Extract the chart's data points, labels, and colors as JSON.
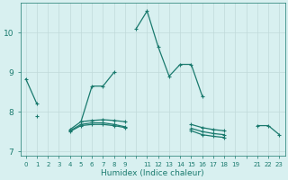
{
  "xlabel": "Humidex (Indice chaleur)",
  "background_color": "#d8f0f0",
  "line_color": "#1a7a6e",
  "grid_color": "#c0dada",
  "x_positions": [
    0,
    1,
    2,
    3,
    4,
    5,
    6,
    7,
    8,
    9,
    10,
    11,
    12,
    13,
    14,
    15,
    16,
    17,
    18,
    19,
    20,
    21,
    22,
    23
  ],
  "x_tick_labels": [
    "0",
    "1",
    "2",
    "3",
    "4",
    "5",
    "6",
    "7",
    "8",
    "9",
    "",
    "11",
    "12",
    "13",
    "14",
    "15",
    "16",
    "17",
    "18",
    "19",
    "",
    "21",
    "22",
    "23"
  ],
  "ylim": [
    6.9,
    10.75
  ],
  "yticks": [
    7,
    8,
    9,
    10
  ],
  "series": [
    {
      "x": [
        0,
        1,
        2,
        3,
        4,
        5,
        6,
        7,
        8,
        9,
        10,
        11,
        12,
        13,
        14,
        15,
        16,
        17,
        18,
        19,
        20,
        21,
        22,
        23
      ],
      "y": [
        8.83,
        8.2,
        null,
        null,
        null,
        7.75,
        8.65,
        8.65,
        9.0,
        null,
        10.1,
        10.55,
        9.65,
        8.9,
        9.2,
        9.2,
        8.4,
        null,
        null,
        null,
        null,
        null,
        null,
        null
      ]
    },
    {
      "x": [
        0,
        1,
        2,
        3,
        4,
        5,
        6,
        7,
        8,
        9,
        10,
        11,
        12,
        13,
        14,
        15,
        16,
        17,
        18,
        19,
        20,
        21,
        22,
        23
      ],
      "y": [
        null,
        7.9,
        null,
        null,
        7.55,
        7.75,
        7.78,
        7.8,
        7.78,
        7.75,
        null,
        null,
        null,
        null,
        null,
        7.68,
        7.6,
        7.55,
        7.52,
        null,
        null,
        7.65,
        7.65,
        7.42
      ]
    },
    {
      "x": [
        0,
        1,
        2,
        3,
        4,
        5,
        6,
        7,
        8,
        9,
        10,
        11,
        12,
        13,
        14,
        15,
        16,
        17,
        18,
        19,
        20,
        21,
        22,
        23
      ],
      "y": [
        null,
        null,
        null,
        null,
        7.52,
        7.68,
        7.72,
        7.72,
        7.68,
        7.62,
        null,
        null,
        null,
        null,
        null,
        7.58,
        7.5,
        7.45,
        7.42,
        null,
        null,
        null,
        null,
        null
      ]
    },
    {
      "x": [
        0,
        1,
        2,
        3,
        4,
        5,
        6,
        7,
        8,
        9,
        10,
        11,
        12,
        13,
        14,
        15,
        16,
        17,
        18,
        19,
        20,
        21,
        22,
        23
      ],
      "y": [
        null,
        null,
        null,
        null,
        7.5,
        7.65,
        7.68,
        7.68,
        7.65,
        7.6,
        null,
        null,
        null,
        null,
        null,
        7.52,
        7.42,
        7.38,
        7.35,
        null,
        null,
        null,
        null,
        null
      ]
    }
  ]
}
